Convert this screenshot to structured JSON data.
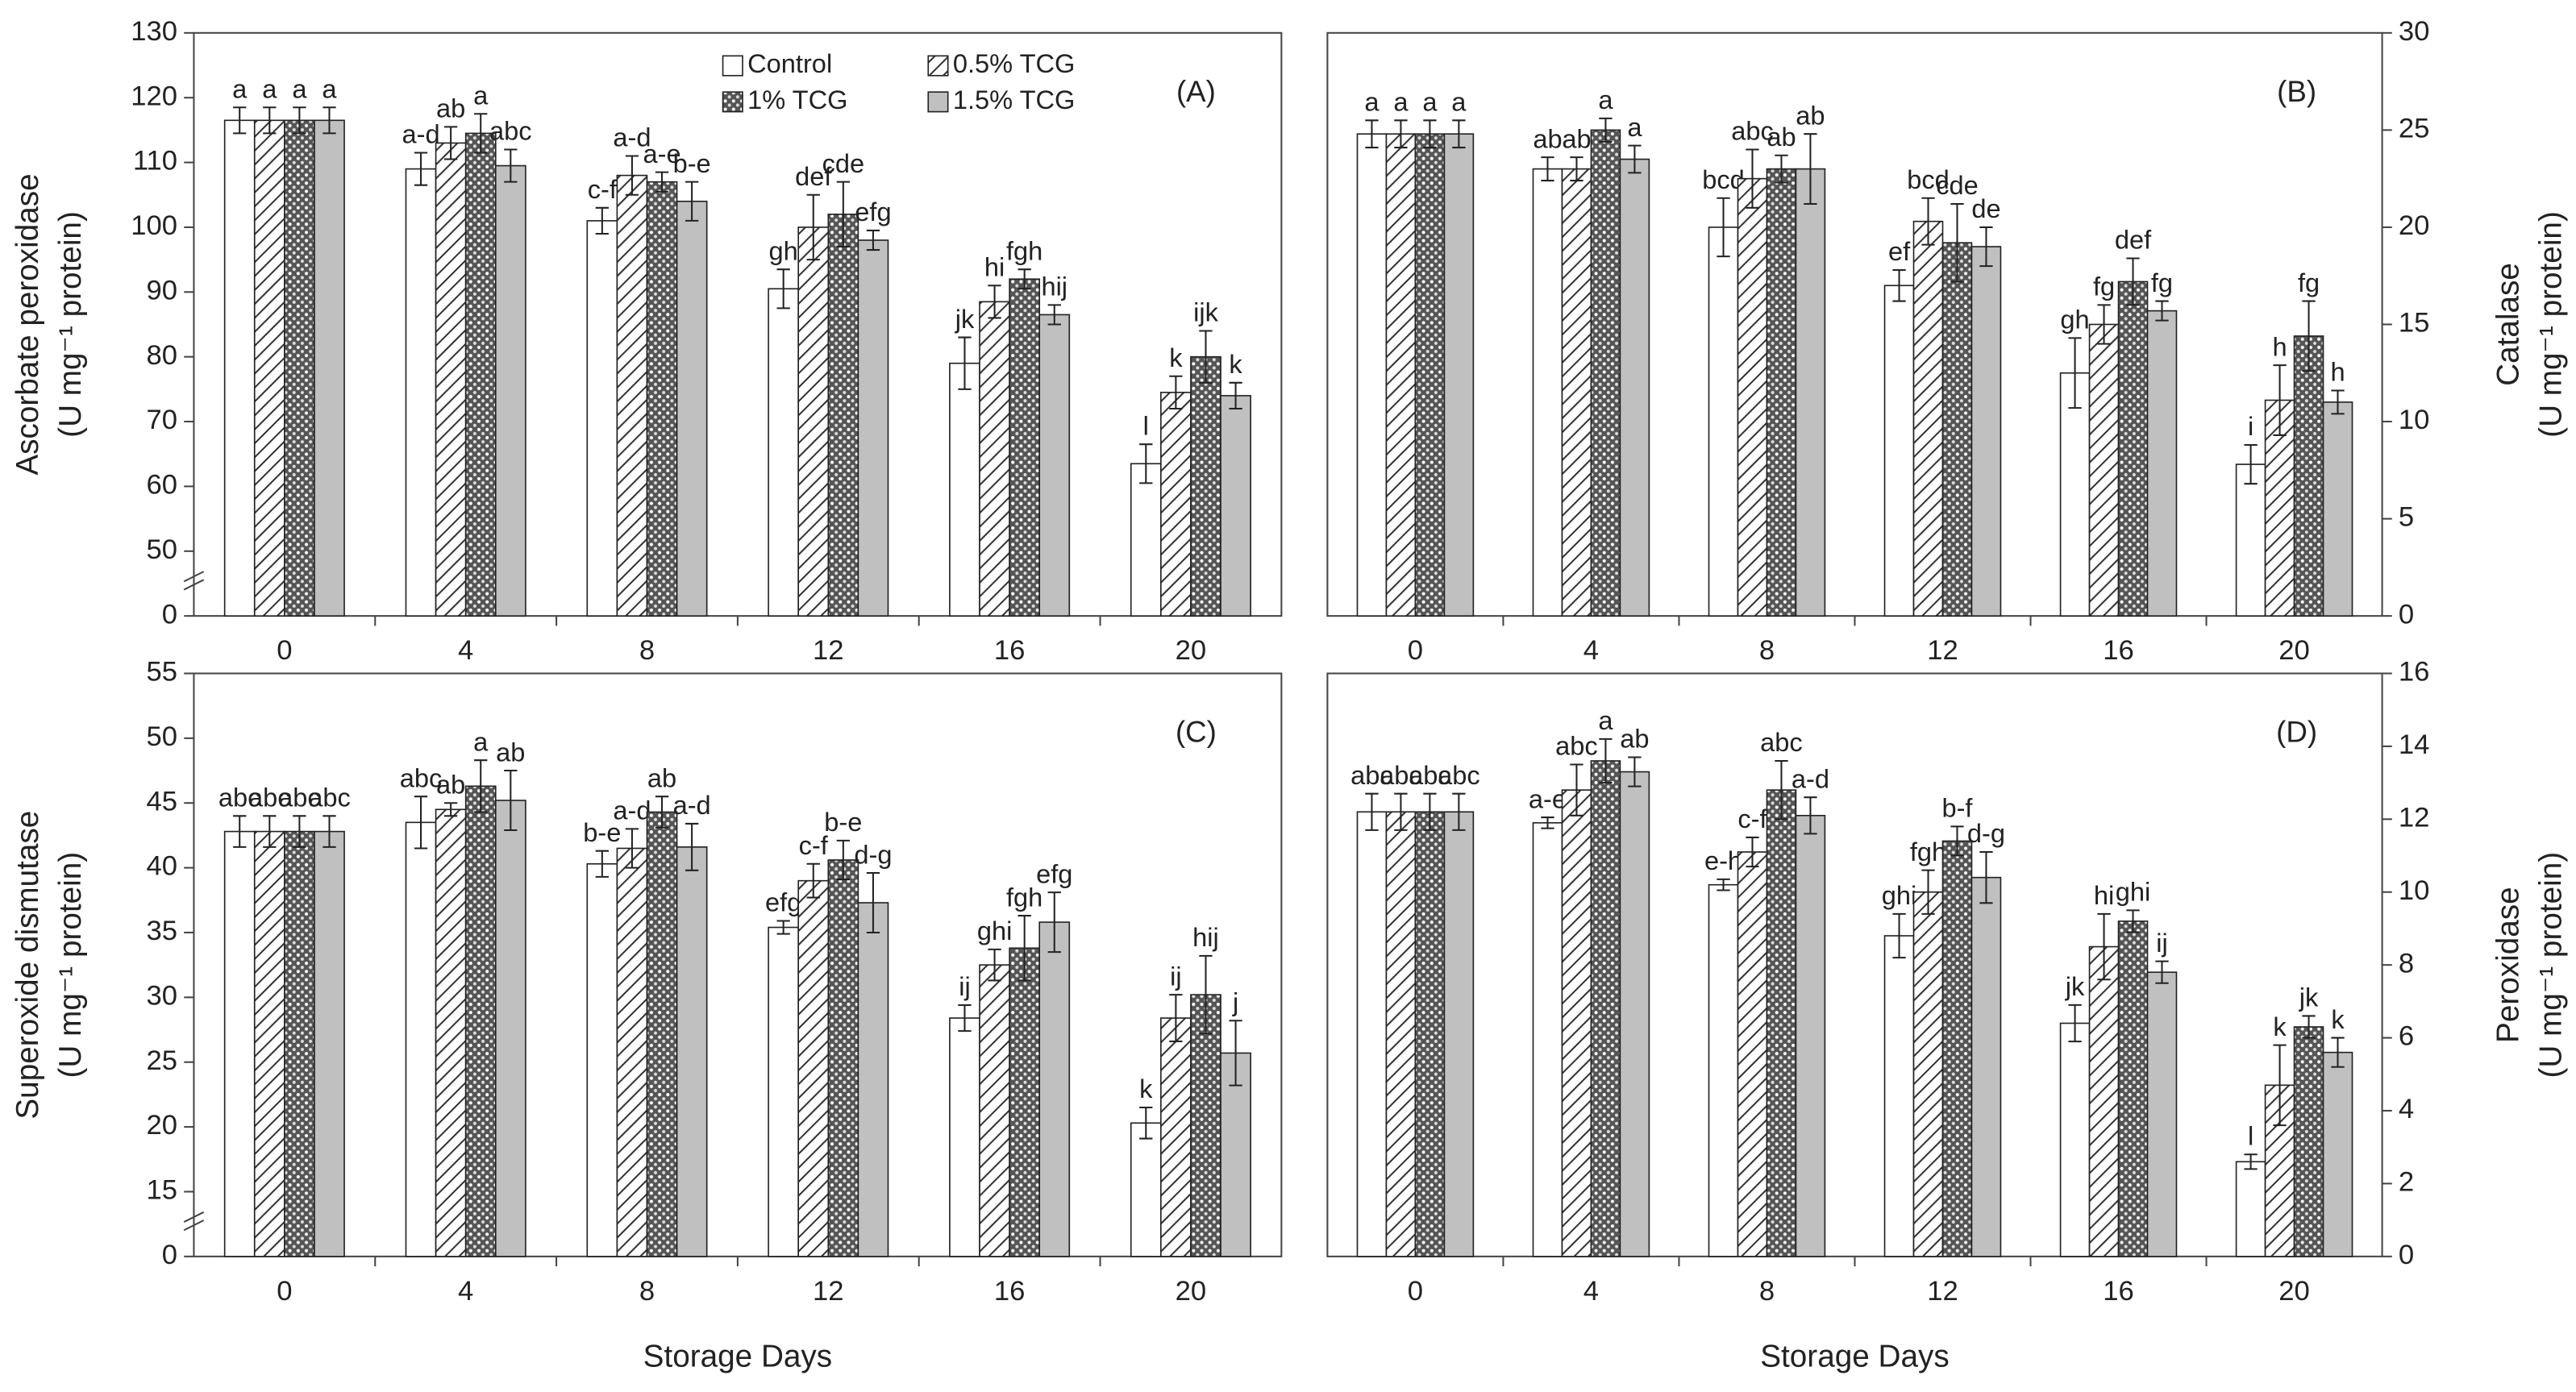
{
  "chart_data": [
    {
      "type": "bar",
      "panel_label": "(A)",
      "ylabel": [
        "Ascorbate peroxidase",
        "(U mg⁻¹ protein)"
      ],
      "y_axis_side": "left",
      "axis_break": true,
      "legend": true,
      "categories": [
        "0",
        "4",
        "8",
        "12",
        "16",
        "20"
      ],
      "ylim": [
        40,
        130
      ],
      "yticks": [
        0,
        50,
        60,
        70,
        80,
        90,
        100,
        110,
        120,
        130
      ],
      "series": [
        {
          "name": "Control",
          "color": "#ffffff",
          "pattern": "solid",
          "values": [
            116.5,
            109,
            101,
            90.5,
            79,
            63.5
          ],
          "errors": [
            2,
            2.5,
            2,
            3,
            4,
            3
          ],
          "letters": [
            "a",
            "a-d",
            "c-f",
            "gh",
            "jk",
            "l"
          ]
        },
        {
          "name": "0.5% TCG",
          "color": "#ffffff",
          "pattern": "hatch",
          "values": [
            116.5,
            113,
            108,
            100,
            88.5,
            74.5
          ],
          "errors": [
            2,
            2.5,
            3,
            5,
            2.5,
            2.5
          ],
          "letters": [
            "a",
            "ab",
            "a-d",
            "def",
            "hi",
            "k"
          ]
        },
        {
          "name": "1% TCG",
          "color": "#555555",
          "pattern": "dots",
          "values": [
            116.5,
            114.5,
            107,
            102,
            92,
            80
          ],
          "errors": [
            2,
            3,
            1.5,
            5,
            1.5,
            4
          ],
          "letters": [
            "a",
            "a",
            "a-e",
            "cde",
            "fgh",
            "ijk"
          ]
        },
        {
          "name": "1.5% TCG",
          "color": "#c0c0c0",
          "pattern": "solid",
          "values": [
            116.5,
            109.5,
            104,
            98,
            86.5,
            74
          ],
          "errors": [
            2,
            2.5,
            3,
            1.5,
            1.5,
            2
          ],
          "letters": [
            "a",
            "abc",
            "b-e",
            "efg",
            "hij",
            "k"
          ]
        }
      ]
    },
    {
      "type": "bar",
      "panel_label": "(B)",
      "ylabel": [
        "Catalase",
        "(U mg⁻¹ protein)"
      ],
      "y_axis_side": "right",
      "axis_break": false,
      "legend": false,
      "categories": [
        "0",
        "4",
        "8",
        "12",
        "16",
        "20"
      ],
      "ylim": [
        0,
        30
      ],
      "yticks": [
        0,
        5,
        10,
        15,
        20,
        25,
        30
      ],
      "series": [
        {
          "color": "#ffffff",
          "pattern": "solid",
          "values": [
            24.8,
            23,
            20,
            17,
            12.5,
            7.8
          ],
          "errors": [
            0.7,
            0.6,
            1.5,
            0.8,
            1.8,
            1
          ],
          "letters": [
            "a",
            "ab",
            "bcd",
            "ef",
            "gh",
            "i"
          ]
        },
        {
          "color": "#ffffff",
          "pattern": "hatch",
          "values": [
            24.8,
            23,
            22.5,
            20.3,
            15,
            11.1
          ],
          "errors": [
            0.7,
            0.6,
            1.5,
            1.2,
            1,
            1.8
          ],
          "letters": [
            "a",
            "ab",
            "abc",
            "bcd",
            "fg",
            "h"
          ]
        },
        {
          "color": "#555555",
          "pattern": "dots",
          "values": [
            24.8,
            25,
            23,
            19.2,
            17.2,
            14.4
          ],
          "errors": [
            0.7,
            0.6,
            0.7,
            2,
            1.2,
            1.8
          ],
          "letters": [
            "a",
            "a",
            "ab",
            "cde",
            "def",
            "fg"
          ]
        },
        {
          "color": "#c0c0c0",
          "pattern": "solid",
          "values": [
            24.8,
            23.5,
            23,
            19,
            15.7,
            11
          ],
          "errors": [
            0.7,
            0.7,
            1.8,
            1,
            0.5,
            0.6
          ],
          "letters": [
            "a",
            "a",
            "ab",
            "de",
            "fg",
            "h"
          ]
        }
      ]
    },
    {
      "type": "bar",
      "panel_label": "(C)",
      "ylabel": [
        "Superoxide dismutase",
        "(U mg⁻¹ protein)"
      ],
      "y_axis_side": "left",
      "axis_break": true,
      "legend": false,
      "xlabel": "Storage Days",
      "categories": [
        "0",
        "4",
        "8",
        "12",
        "16",
        "20"
      ],
      "ylim": [
        10,
        55
      ],
      "yticks": [
        0,
        15,
        20,
        25,
        30,
        35,
        40,
        45,
        50,
        55
      ],
      "series": [
        {
          "color": "#ffffff",
          "pattern": "solid",
          "values": [
            42.8,
            43.5,
            40.3,
            35.4,
            28.4,
            20.3
          ],
          "errors": [
            1.2,
            2,
            1,
            0.5,
            1,
            1.2
          ],
          "letters": [
            "abc",
            "abc",
            "b-e",
            "efg",
            "ij",
            "k"
          ]
        },
        {
          "color": "#ffffff",
          "pattern": "hatch",
          "values": [
            42.8,
            44.5,
            41.5,
            39,
            32.5,
            28.4
          ],
          "errors": [
            1.2,
            0.5,
            1.5,
            1.3,
            1.2,
            1.8
          ],
          "letters": [
            "abc",
            "ab",
            "a-d",
            "c-f",
            "ghi",
            "ij"
          ]
        },
        {
          "color": "#555555",
          "pattern": "dots",
          "values": [
            42.8,
            46.3,
            44.3,
            40.6,
            33.8,
            30.2
          ],
          "errors": [
            1.2,
            2,
            1.2,
            1.5,
            2.5,
            3
          ],
          "letters": [
            "abc",
            "a",
            "ab",
            "b-e",
            "fgh",
            "hij"
          ]
        },
        {
          "color": "#c0c0c0",
          "pattern": "solid",
          "values": [
            42.8,
            45.2,
            41.6,
            37.3,
            35.8,
            25.7
          ],
          "errors": [
            1.2,
            2.3,
            1.8,
            2.3,
            2.3,
            2.5
          ],
          "letters": [
            "abc",
            "ab",
            "a-d",
            "d-g",
            "efg",
            "j"
          ]
        }
      ]
    },
    {
      "type": "bar",
      "panel_label": "(D)",
      "ylabel": [
        "Peroxidase",
        "(U mg⁻¹ protein)"
      ],
      "y_axis_side": "right",
      "axis_break": false,
      "legend": false,
      "xlabel": "Storage Days",
      "categories": [
        "0",
        "4",
        "8",
        "12",
        "16",
        "20"
      ],
      "ylim": [
        0,
        16
      ],
      "yticks": [
        0,
        2,
        4,
        6,
        8,
        10,
        12,
        14,
        16
      ],
      "series": [
        {
          "color": "#ffffff",
          "pattern": "solid",
          "values": [
            12.2,
            11.9,
            10.2,
            8.8,
            6.4,
            2.6
          ],
          "errors": [
            0.5,
            0.15,
            0.15,
            0.6,
            0.5,
            0.2
          ],
          "letters": [
            "abc",
            "a-e",
            "e-h",
            "ghi",
            "jk",
            "l"
          ]
        },
        {
          "color": "#ffffff",
          "pattern": "hatch",
          "values": [
            12.2,
            12.8,
            11.1,
            10,
            8.5,
            4.7
          ],
          "errors": [
            0.5,
            0.7,
            0.4,
            0.6,
            0.9,
            1.1
          ],
          "letters": [
            "abc",
            "abc",
            "c-f",
            "fgh",
            "hi",
            "k"
          ]
        },
        {
          "color": "#555555",
          "pattern": "dots",
          "values": [
            12.2,
            13.6,
            12.8,
            11.4,
            9.2,
            6.3
          ],
          "errors": [
            0.5,
            0.6,
            0.8,
            0.4,
            0.3,
            0.3
          ],
          "letters": [
            "abc",
            "a",
            "abc",
            "b-f",
            "ghi",
            "jk"
          ]
        },
        {
          "color": "#c0c0c0",
          "pattern": "solid",
          "values": [
            12.2,
            13.3,
            12.1,
            10.4,
            7.8,
            5.6
          ],
          "errors": [
            0.5,
            0.4,
            0.5,
            0.7,
            0.3,
            0.4
          ],
          "letters": [
            "abc",
            "ab",
            "a-d",
            "d-g",
            "ij",
            "k"
          ]
        }
      ]
    }
  ]
}
